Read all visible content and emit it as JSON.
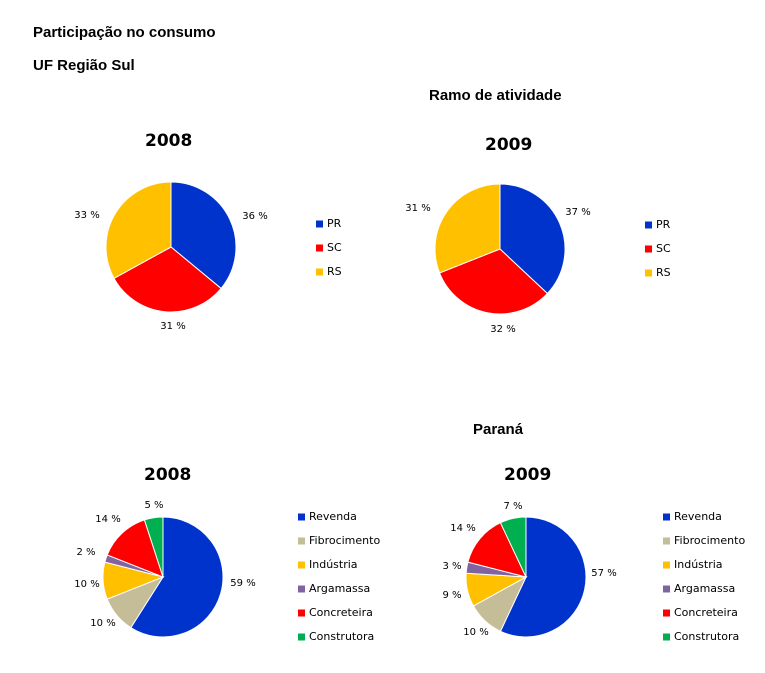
{
  "header": {
    "title": "Participação no consumo",
    "subtitle": "UF Região Sul",
    "section1": "Ramo de atividade",
    "section2": "Paraná"
  },
  "colors": {
    "blue": "#0033CC",
    "red": "#FF0000",
    "yellow": "#FFC000",
    "tan": "#C4BD97",
    "gold": "#FFC000",
    "purple": "#8064A2",
    "green": "#00B050"
  },
  "chart_data": [
    {
      "type": "pie",
      "title": "2008",
      "categories": [
        "PR",
        "SC",
        "RS"
      ],
      "values": [
        36,
        31,
        33
      ],
      "labels": [
        "36 %",
        "31 %",
        "33 %"
      ],
      "colors": [
        "#0033CC",
        "#FF0000",
        "#FFC000"
      ],
      "legend": "right"
    },
    {
      "type": "pie",
      "title": "2009",
      "categories": [
        "PR",
        "SC",
        "RS"
      ],
      "values": [
        37,
        32,
        31
      ],
      "labels": [
        "37 %",
        "32 %",
        "31 %"
      ],
      "colors": [
        "#0033CC",
        "#FF0000",
        "#FFC000"
      ],
      "legend": "right"
    },
    {
      "type": "pie",
      "title": "2008",
      "categories": [
        "Revenda",
        "Fibrocimento",
        "Indústria",
        "Argamassa",
        "Concreteira",
        "Construtora"
      ],
      "values": [
        59,
        10,
        10,
        2,
        14,
        5
      ],
      "labels": [
        "59 %",
        "10 %",
        "10 %",
        "2 %",
        "14 %",
        "5 %"
      ],
      "colors": [
        "#0033CC",
        "#C4BD97",
        "#FFC000",
        "#8064A2",
        "#FF0000",
        "#00B050"
      ],
      "legend": "right"
    },
    {
      "type": "pie",
      "title": "2009",
      "categories": [
        "Revenda",
        "Fibrocimento",
        "Indústria",
        "Argamassa",
        "Concreteira",
        "Construtora"
      ],
      "values": [
        57,
        10,
        9,
        3,
        14,
        7
      ],
      "labels": [
        "57 %",
        "10 %",
        "9 %",
        "3 %",
        "14 %",
        "7 %"
      ],
      "colors": [
        "#0033CC",
        "#C4BD97",
        "#FFC000",
        "#8064A2",
        "#FF0000",
        "#00B050"
      ],
      "legend": "right"
    }
  ]
}
